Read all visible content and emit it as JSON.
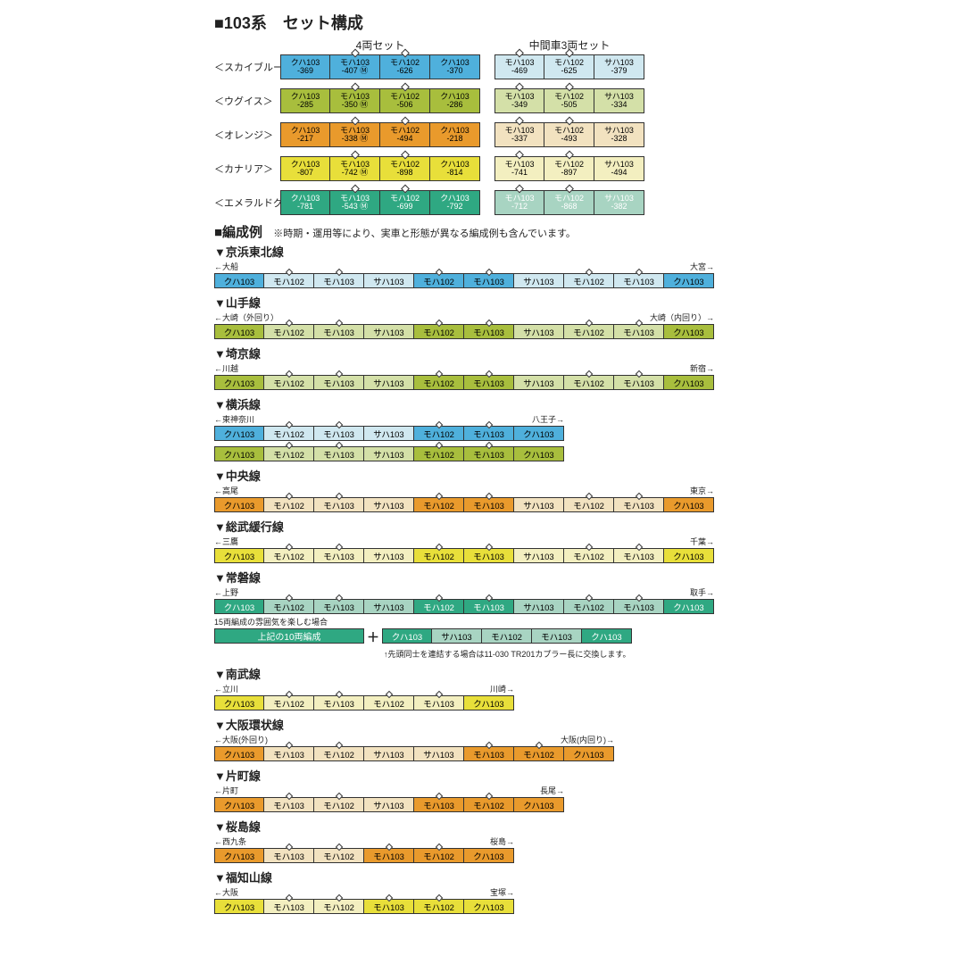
{
  "title": "■103系　セット構成",
  "setHeaders": {
    "set4": "4両セット",
    "set3": "中間車3両セット"
  },
  "colors": {
    "skyblue": "#4fb0dc",
    "skyblue_lt": "#d0e8f0",
    "uguisu": "#a8be3d",
    "uguisu_lt": "#d4e0a8",
    "orange": "#e99a2c",
    "orange_lt": "#f2e2c0",
    "canary": "#e8df3a",
    "canary_lt": "#f3efc0",
    "emerald": "#2fa882",
    "emerald_lt": "#a8d4c2"
  },
  "sets": [
    {
      "label": "＜スカイブルー＞",
      "c": "skyblue",
      "fg": "#000",
      "a": [
        {
          "t": "クハ103",
          "s": "-369"
        },
        {
          "t": "モハ103",
          "s": "-407",
          "d": 1,
          "m": 1
        },
        {
          "t": "モハ102",
          "s": "-626",
          "d": 1
        },
        {
          "t": "クハ103",
          "s": "-370"
        }
      ],
      "b": [
        {
          "t": "モハ103",
          "s": "-469",
          "d": 1
        },
        {
          "t": "モハ102",
          "s": "-625",
          "d": 1
        },
        {
          "t": "サハ103",
          "s": "-379"
        }
      ]
    },
    {
      "label": "＜ウグイス＞",
      "c": "uguisu",
      "fg": "#000",
      "a": [
        {
          "t": "クハ103",
          "s": "-285"
        },
        {
          "t": "モハ103",
          "s": "-350",
          "d": 1,
          "m": 1
        },
        {
          "t": "モハ102",
          "s": "-506",
          "d": 1
        },
        {
          "t": "クハ103",
          "s": "-286"
        }
      ],
      "b": [
        {
          "t": "モハ103",
          "s": "-349",
          "d": 1
        },
        {
          "t": "モハ102",
          "s": "-505",
          "d": 1
        },
        {
          "t": "サハ103",
          "s": "-334"
        }
      ]
    },
    {
      "label": "＜オレンジ＞",
      "c": "orange",
      "fg": "#000",
      "a": [
        {
          "t": "クハ103",
          "s": "-217"
        },
        {
          "t": "モハ103",
          "s": "-338",
          "d": 1,
          "m": 1
        },
        {
          "t": "モハ102",
          "s": "-494",
          "d": 1
        },
        {
          "t": "クハ103",
          "s": "-218"
        }
      ],
      "b": [
        {
          "t": "モハ103",
          "s": "-337",
          "d": 1
        },
        {
          "t": "モハ102",
          "s": "-493",
          "d": 1
        },
        {
          "t": "サハ103",
          "s": "-328"
        }
      ]
    },
    {
      "label": "＜カナリア＞",
      "c": "canary",
      "fg": "#000",
      "a": [
        {
          "t": "クハ103",
          "s": "-807"
        },
        {
          "t": "モハ103",
          "s": "-742",
          "d": 1,
          "m": 1
        },
        {
          "t": "モハ102",
          "s": "-898",
          "d": 1
        },
        {
          "t": "クハ103",
          "s": "-814"
        }
      ],
      "b": [
        {
          "t": "モハ103",
          "s": "-741",
          "d": 1
        },
        {
          "t": "モハ102",
          "s": "-897",
          "d": 1
        },
        {
          "t": "サハ103",
          "s": "-494"
        }
      ]
    },
    {
      "label": "＜エメラルドグリーン＞",
      "c": "emerald",
      "fg": "#fff",
      "a": [
        {
          "t": "クハ103",
          "s": "-781"
        },
        {
          "t": "モハ103",
          "s": "-543",
          "d": 1,
          "m": 1
        },
        {
          "t": "モハ102",
          "s": "-699",
          "d": 1
        },
        {
          "t": "クハ103",
          "s": "-792"
        }
      ],
      "b": [
        {
          "t": "モハ103",
          "s": "-712",
          "d": 1
        },
        {
          "t": "モハ102",
          "s": "-868",
          "d": 1
        },
        {
          "t": "サハ103",
          "s": "-382"
        }
      ]
    }
  ],
  "exTitle": "■編成例",
  "exNote": "※時期・運用等により、実車と形態が異なる編成例も含んでいます。",
  "examples": [
    {
      "title": "▼京浜東北線",
      "left": "←大船",
      "right": "大宮→",
      "c": "skyblue",
      "cars": [
        "クハ103",
        "モハ102",
        "モハ103",
        "サハ103",
        "モハ102",
        "モハ103",
        "サハ103",
        "モハ102",
        "モハ103",
        "クハ103"
      ],
      "d": [
        0,
        1,
        1,
        0,
        1,
        1,
        0,
        1,
        1,
        0
      ],
      "lt": [
        0,
        1,
        1,
        1,
        0,
        0,
        1,
        1,
        1,
        0
      ]
    },
    {
      "title": "▼山手線",
      "left": "←大崎（外回り）",
      "right": "大崎（内回り）→",
      "c": "uguisu",
      "cars": [
        "クハ103",
        "モハ102",
        "モハ103",
        "サハ103",
        "モハ102",
        "モハ103",
        "サハ103",
        "モハ102",
        "モハ103",
        "クハ103"
      ],
      "d": [
        0,
        1,
        1,
        0,
        1,
        1,
        0,
        1,
        1,
        0
      ],
      "lt": [
        0,
        1,
        1,
        1,
        0,
        0,
        1,
        1,
        1,
        0
      ]
    },
    {
      "title": "▼埼京線",
      "left": "←川越",
      "right": "新宿→",
      "c": "uguisu",
      "cars": [
        "クハ103",
        "モハ102",
        "モハ103",
        "サハ103",
        "モハ102",
        "モハ103",
        "サハ103",
        "モハ102",
        "モハ103",
        "クハ103"
      ],
      "d": [
        0,
        1,
        1,
        0,
        1,
        1,
        0,
        1,
        1,
        0
      ],
      "lt": [
        0,
        1,
        1,
        1,
        0,
        0,
        1,
        1,
        1,
        0
      ]
    },
    {
      "title": "▼横浜線",
      "left": "←東神奈川",
      "right": "八王子→",
      "c": "skyblue",
      "cars": [
        "クハ103",
        "モハ102",
        "モハ103",
        "サハ103",
        "モハ102",
        "モハ103",
        "クハ103"
      ],
      "d": [
        0,
        1,
        1,
        0,
        1,
        1,
        0
      ],
      "lt": [
        0,
        1,
        1,
        1,
        0,
        0,
        0
      ],
      "w": 7,
      "extra": {
        "c": "uguisu",
        "cars": [
          "クハ103",
          "モハ102",
          "モハ103",
          "サハ103",
          "モハ102",
          "モハ103",
          "クハ103"
        ],
        "d": [
          0,
          1,
          1,
          0,
          1,
          1,
          0
        ],
        "lt": [
          0,
          1,
          1,
          1,
          0,
          0,
          0
        ]
      }
    },
    {
      "title": "▼中央線",
      "left": "←高尾",
      "right": "東京→",
      "c": "orange",
      "cars": [
        "クハ103",
        "モハ102",
        "モハ103",
        "サハ103",
        "モハ102",
        "モハ103",
        "サハ103",
        "モハ102",
        "モハ103",
        "クハ103"
      ],
      "d": [
        0,
        1,
        1,
        0,
        1,
        1,
        0,
        1,
        1,
        0
      ],
      "lt": [
        0,
        1,
        1,
        1,
        0,
        0,
        1,
        1,
        1,
        0
      ]
    },
    {
      "title": "▼総武緩行線",
      "left": "←三鷹",
      "right": "千葉→",
      "c": "canary",
      "cars": [
        "クハ103",
        "モハ102",
        "モハ103",
        "サハ103",
        "モハ102",
        "モハ103",
        "サハ103",
        "モハ102",
        "モハ103",
        "クハ103"
      ],
      "d": [
        0,
        1,
        1,
        0,
        1,
        1,
        0,
        1,
        1,
        0
      ],
      "lt": [
        0,
        1,
        1,
        1,
        0,
        0,
        1,
        1,
        1,
        0
      ]
    },
    {
      "title": "▼常磐線",
      "left": "←上野",
      "right": "取手→",
      "c": "emerald",
      "fg": "#fff",
      "cars": [
        "クハ103",
        "モハ102",
        "モハ103",
        "サハ103",
        "モハ102",
        "モハ103",
        "サハ103",
        "モハ102",
        "モハ103",
        "クハ103"
      ],
      "d": [
        0,
        1,
        1,
        0,
        1,
        1,
        0,
        1,
        1,
        0
      ],
      "lt": [
        0,
        1,
        1,
        1,
        0,
        0,
        1,
        1,
        1,
        0
      ],
      "special": {
        "note1": "15両編成の雰囲気を楽しむ場合",
        "wide": "上記の10両編成",
        "add": [
          "クハ103",
          "サハ103",
          "モハ102",
          "モハ103",
          "クハ103"
        ],
        "addlt": [
          0,
          1,
          1,
          1,
          0
        ],
        "note2": "↑先頭同士を連結する場合は11-030 TR201カプラー長に交換します。"
      }
    },
    {
      "title": "▼南武線",
      "left": "←立川",
      "right": "川崎→",
      "c": "canary",
      "w": 6,
      "cars": [
        "クハ103",
        "モハ102",
        "モハ103",
        "モハ102",
        "モハ103",
        "クハ103"
      ],
      "d": [
        0,
        1,
        1,
        1,
        1,
        0
      ],
      "lt": [
        0,
        1,
        1,
        1,
        1,
        0
      ]
    },
    {
      "title": "▼大阪環状線",
      "left": "←大阪(外回り)",
      "right": "大阪(内回り)→",
      "c": "orange",
      "w": 8,
      "cars": [
        "クハ103",
        "モハ103",
        "モハ102",
        "サハ103",
        "サハ103",
        "モハ103",
        "モハ102",
        "クハ103"
      ],
      "d": [
        0,
        1,
        1,
        0,
        0,
        1,
        1,
        0
      ],
      "lt": [
        0,
        1,
        1,
        1,
        1,
        0,
        0,
        0
      ]
    },
    {
      "title": "▼片町線",
      "left": "←片町",
      "right": "長尾→",
      "c": "orange",
      "w": 7,
      "cars": [
        "クハ103",
        "モハ103",
        "モハ102",
        "サハ103",
        "モハ103",
        "モハ102",
        "クハ103"
      ],
      "d": [
        0,
        1,
        1,
        0,
        1,
        1,
        0
      ],
      "lt": [
        0,
        1,
        1,
        1,
        0,
        0,
        0
      ]
    },
    {
      "title": "▼桜島線",
      "left": "←西九条",
      "right": "桜島→",
      "c": "orange",
      "w": 6,
      "cars": [
        "クハ103",
        "モハ103",
        "モハ102",
        "モハ103",
        "モハ102",
        "クハ103"
      ],
      "d": [
        0,
        1,
        1,
        1,
        1,
        0
      ],
      "lt": [
        0,
        1,
        1,
        0,
        0,
        0
      ]
    },
    {
      "title": "▼福知山線",
      "left": "←大阪",
      "right": "宝塚→",
      "c": "canary",
      "w": 6,
      "cars": [
        "クハ103",
        "モハ103",
        "モハ102",
        "モハ103",
        "モハ102",
        "クハ103"
      ],
      "d": [
        0,
        1,
        1,
        1,
        1,
        0
      ],
      "lt": [
        0,
        1,
        1,
        0,
        0,
        0
      ]
    }
  ]
}
